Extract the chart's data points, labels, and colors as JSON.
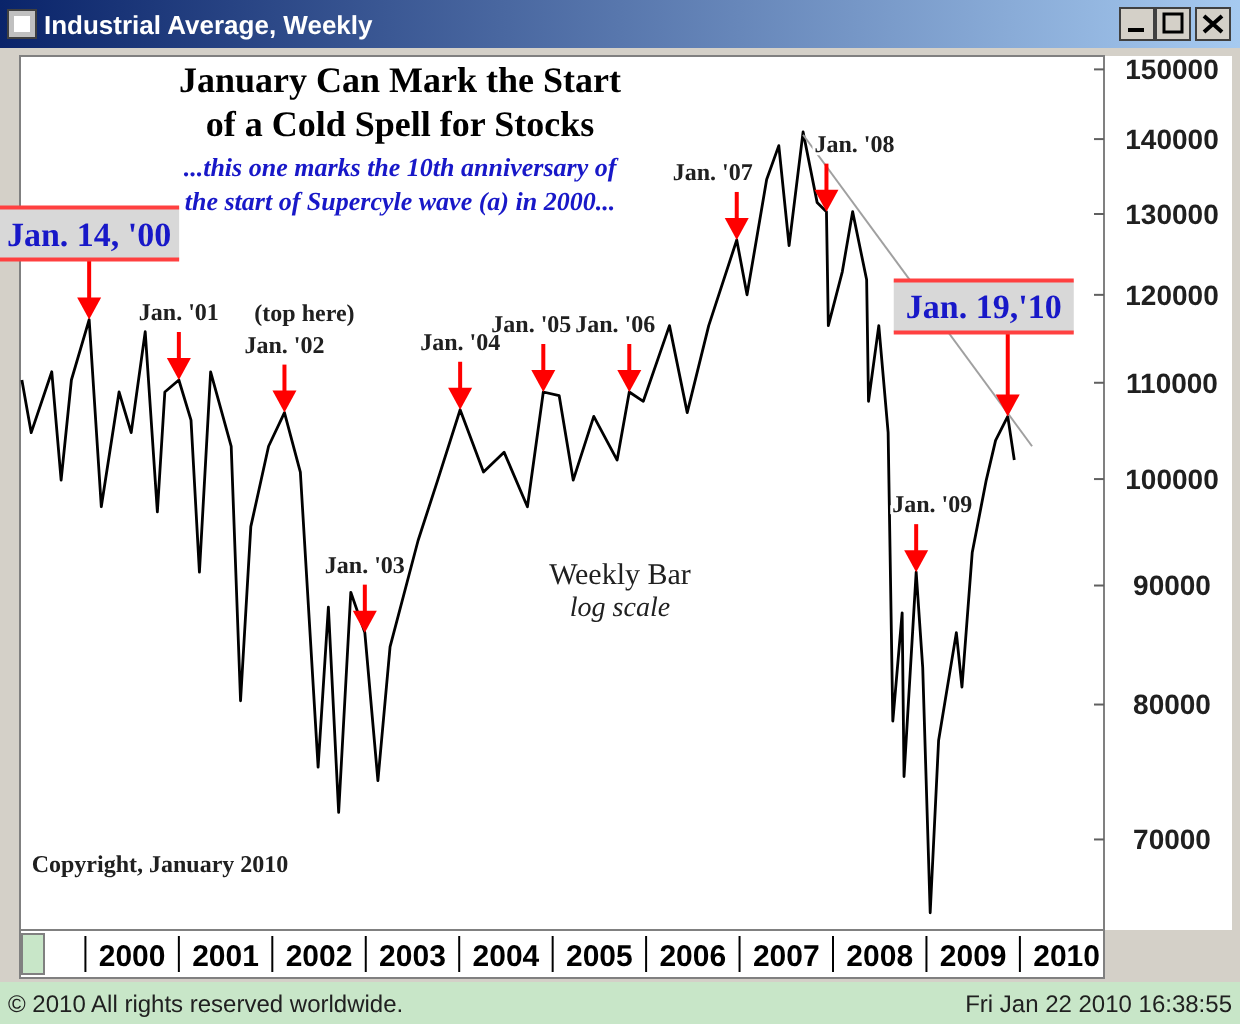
{
  "chart_data": {
    "type": "line",
    "title": "January Can Mark the Start\nof a Cold Spell for Stocks",
    "subtitle": "...this one marks the 10th anniversary of\nthe start of Supercyle wave (a) in 2000...",
    "annotations": [
      {
        "text": "Jan. 14, '00",
        "x": 2000.04,
        "y": 117100
      },
      {
        "text": "Jan. '01",
        "x": 2001.0,
        "y": 110300
      },
      {
        "text": "Jan. '02",
        "x": 2002.13,
        "y": 106800
      },
      {
        "text": "Jan. '03",
        "x": 2002.99,
        "y": 85900
      },
      {
        "text": "Jan. '04",
        "x": 2004.01,
        "y": 107100
      },
      {
        "text": "Jan. '05",
        "x": 2004.9,
        "y": 109000
      },
      {
        "text": "Jan. '06",
        "x": 2005.82,
        "y": 109000
      },
      {
        "text": "Jan. '07",
        "x": 2006.97,
        "y": 126700
      },
      {
        "text": "Jan. '08",
        "x": 2007.93,
        "y": 130300
      },
      {
        "text": "Jan. '09",
        "x": 2008.89,
        "y": 91200
      },
      {
        "text": "Jan. 19,'10",
        "x": 2009.87,
        "y": 106400
      },
      "Industrial Average, Weekly",
      "(top here)",
      "Weekly Bar",
      "log scale",
      "Copyright, January 2010",
      "© 2010 All rights reserved worldwide.",
      "Fri Jan 22 2010 16:38:55"
    ],
    "series": [
      {
        "color": "#000000",
        "x": [
          1999.32,
          1999.42,
          1999.64,
          1999.74,
          1999.85,
          2000.04,
          2000.17,
          2000.36,
          2000.49,
          2000.64,
          2000.77,
          2000.85,
          2001.0,
          2001.13,
          2001.22,
          2001.34,
          2001.56,
          2001.66,
          2001.77,
          2001.96,
          2002.13,
          2002.3,
          2002.49,
          2002.6,
          2002.71,
          2002.84,
          2002.99,
          2003.13,
          2003.26,
          2003.56,
          2003.77,
          2004.01,
          2004.26,
          2004.48,
          2004.73,
          2004.9,
          2005.07,
          2005.22,
          2005.44,
          2005.69,
          2005.82,
          2005.97,
          2006.25,
          2006.44,
          2006.67,
          2006.97,
          2007.08,
          2007.29,
          2007.42,
          2007.53,
          2007.68,
          2007.83,
          2007.93,
          2007.95,
          2008.1,
          2008.21,
          2008.36,
          2008.38,
          2008.49,
          2008.59,
          2008.64,
          2008.74,
          2008.76,
          2008.89,
          2008.96,
          2009.04,
          2009.13,
          2009.32,
          2009.38,
          2009.49,
          2009.64,
          2009.74,
          2009.87,
          2009.94
        ],
        "values": [
          110300,
          104700,
          111200,
          99900,
          110300,
          117100,
          97300,
          109000,
          104700,
          115700,
          96800,
          109000,
          110300,
          106000,
          91200,
          111200,
          103300,
          80300,
          95400,
          103300,
          106800,
          100700,
          75200,
          88100,
          71900,
          89400,
          85900,
          74200,
          84700,
          94100,
          99900,
          107100,
          100700,
          102700,
          97300,
          109000,
          108600,
          99900,
          106400,
          101900,
          109000,
          108000,
          116400,
          106800,
          116400,
          126700,
          120000,
          134500,
          139100,
          126000,
          141000,
          131500,
          130300,
          116400,
          122800,
          130300,
          121800,
          108000,
          116400,
          104700,
          78700,
          87600,
          74500,
          91200,
          83000,
          65100,
          77200,
          85900,
          81400,
          93000,
          99900,
          103900,
          106400,
          101900
        ]
      },
      {
        "type": "line",
        "color": "#a0a0a0",
        "x": [
          2007.68,
          2010.13
        ],
        "values": [
          140600,
          103300
        ]
      }
    ],
    "xlim": [
      1999.3,
      2010.9
    ],
    "xticks": [
      {
        "value": 2000.5,
        "label": "2000"
      },
      {
        "value": 2001.5,
        "label": "2001"
      },
      {
        "value": 2002.5,
        "label": "2002"
      },
      {
        "value": 2003.5,
        "label": "2003"
      },
      {
        "value": 2004.5,
        "label": "2004"
      },
      {
        "value": 2005.5,
        "label": "2005"
      },
      {
        "value": 2006.5,
        "label": "2006"
      },
      {
        "value": 2007.5,
        "label": "2007"
      },
      {
        "value": 2008.5,
        "label": "2008"
      },
      {
        "value": 2009.5,
        "label": "2009"
      },
      {
        "value": 2010.5,
        "label": "2010"
      }
    ],
    "ylim": [
      64000,
      152000
    ],
    "yticks": [
      70000,
      80000,
      90000,
      100000,
      110000,
      120000,
      130000,
      140000,
      150000
    ],
    "log": true
  }
}
